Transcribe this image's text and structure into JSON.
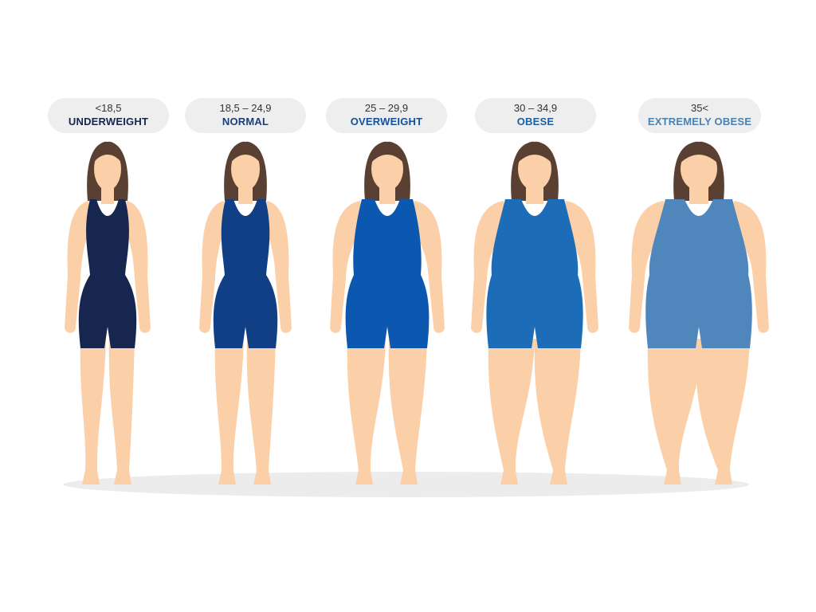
{
  "categories": [
    {
      "range": "<18,5",
      "label": "UNDERWEIGHT",
      "color": "#17264f",
      "label_color": "#17264f"
    },
    {
      "range": "18,5 – 24,9",
      "label": "NORMAL",
      "color": "#103f85",
      "label_color": "#1c3f78"
    },
    {
      "range": "25 – 29,9",
      "label": "OVERWEIGHT",
      "color": "#0c57b0",
      "label_color": "#1450a0"
    },
    {
      "range": "30 – 34,9",
      "label": "OBESE",
      "color": "#1c6cb8",
      "label_color": "#1d5f9f"
    },
    {
      "range": "35<",
      "label": "EXTREMELY OBESE",
      "color": "#4f86bb",
      "label_color": "#4a82b3"
    }
  ],
  "colors": {
    "skin": "#fbd0a8",
    "hair": "#5a4033",
    "label_bg": "#eeeeee",
    "ground_shadow": "#ececec"
  },
  "icons": [
    "female-body-figure-icon"
  ]
}
